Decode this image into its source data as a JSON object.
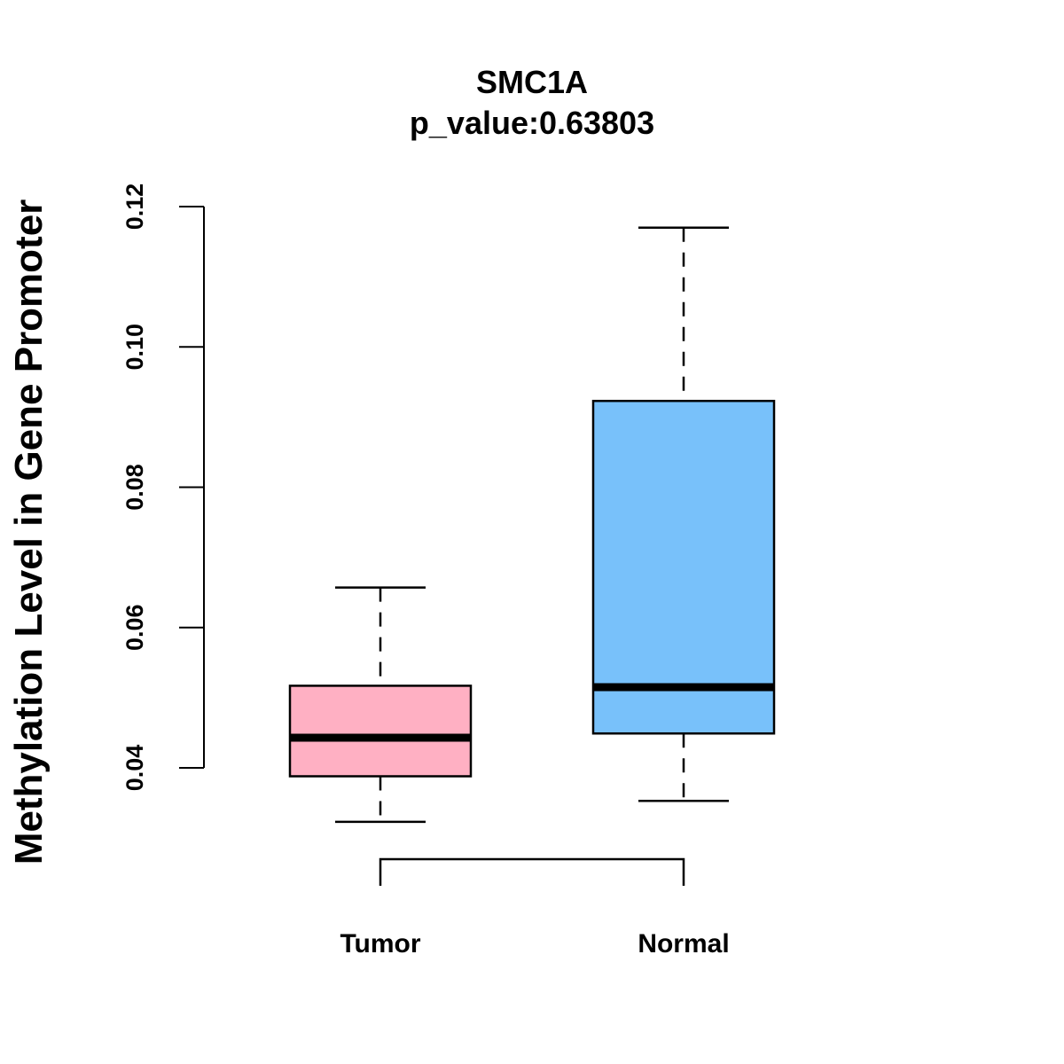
{
  "chart_data": {
    "type": "boxplot",
    "title": "SMC1A",
    "subtitle": "p_value:0.63803",
    "xlabel": "",
    "ylabel": "Methylation Level in Gene Promoter",
    "ylim": [
      0.04,
      0.12
    ],
    "yticks": [
      0.04,
      0.06,
      0.08,
      0.1,
      0.12
    ],
    "ytick_labels": [
      "0.04",
      "0.06",
      "0.08",
      "0.10",
      "0.12"
    ],
    "categories": [
      "Tumor",
      "Normal"
    ],
    "boxes": [
      {
        "name": "Tumor",
        "whisker_low": 0.0323,
        "q1": 0.0388,
        "median": 0.0443,
        "q3": 0.0517,
        "whisker_high": 0.0657,
        "color": "#FFB0C3"
      },
      {
        "name": "Normal",
        "whisker_low": 0.0353,
        "q1": 0.0449,
        "median": 0.0515,
        "q3": 0.0923,
        "whisker_high": 0.117,
        "color": "#78C1FA"
      }
    ],
    "comparison_bracket": [
      "Tumor",
      "Normal"
    ],
    "grid": false,
    "legend": "none"
  }
}
